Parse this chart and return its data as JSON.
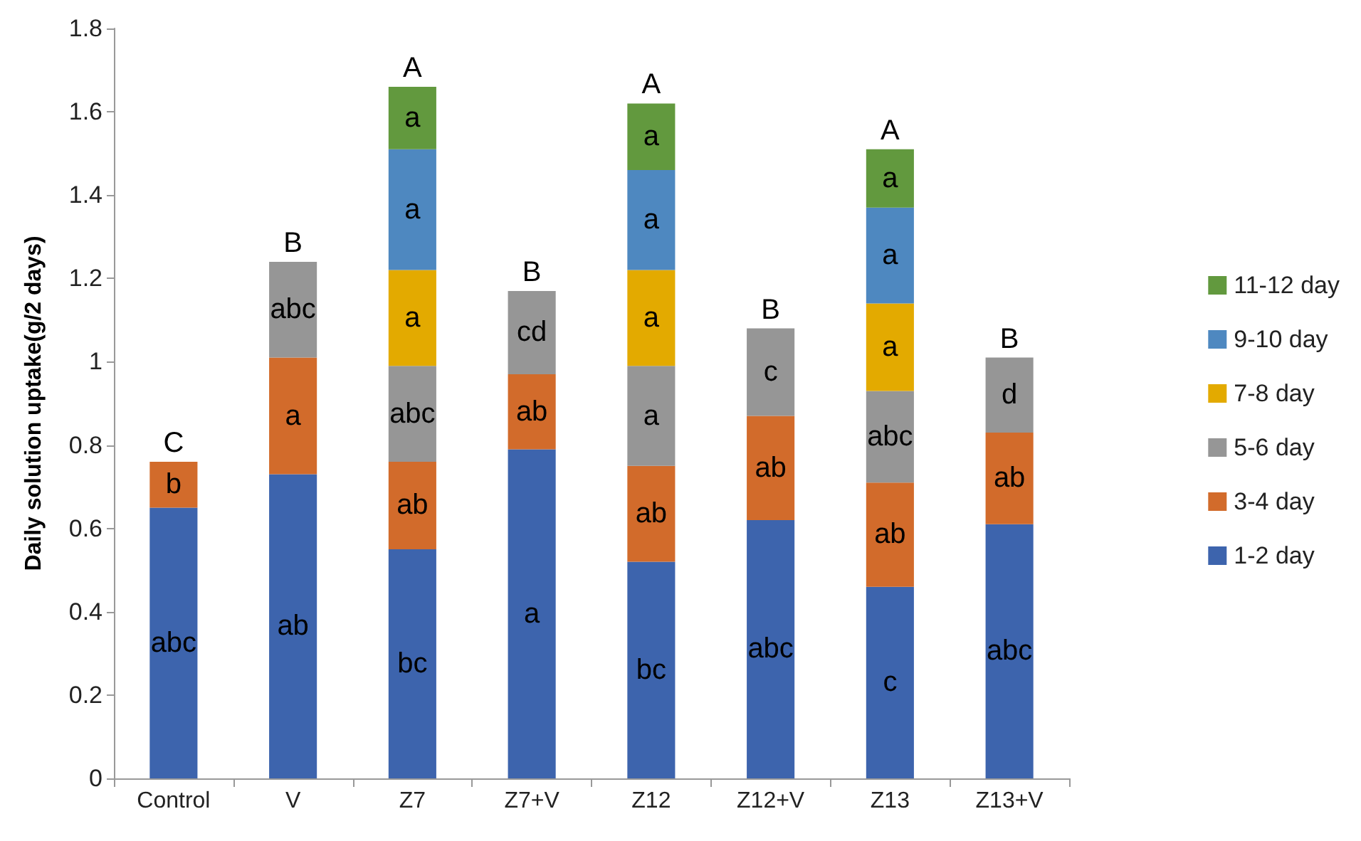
{
  "chart_data": {
    "type": "bar",
    "stacked": true,
    "ylabel": "Daily solution uptake(g/2 days)",
    "categories": [
      "Control",
      "V",
      "Z7",
      "Z7+V",
      "Z12",
      "Z12+V",
      "Z13",
      "Z13+V"
    ],
    "series": [
      {
        "name": "1-2 day",
        "color": "#3d64ad",
        "values": [
          0.65,
          0.73,
          0.55,
          0.79,
          0.52,
          0.62,
          0.46,
          0.61
        ],
        "value_labels": [
          "abc",
          "ab",
          "bc",
          "a",
          "bc",
          "abc",
          "c",
          "abc"
        ]
      },
      {
        "name": "3-4 day",
        "color": "#d26b2b",
        "values": [
          0.11,
          0.28,
          0.21,
          0.18,
          0.23,
          0.25,
          0.25,
          0.22
        ],
        "value_labels": [
          "b",
          "a",
          "ab",
          "ab",
          "ab",
          "ab",
          "ab",
          "ab"
        ]
      },
      {
        "name": "5-6 day",
        "color": "#969696",
        "values": [
          null,
          0.23,
          0.23,
          0.2,
          0.24,
          0.21,
          0.22,
          0.18
        ],
        "value_labels": [
          null,
          "abc",
          "abc",
          "cd",
          "a",
          "c",
          "abc",
          "d"
        ]
      },
      {
        "name": "7-8 day",
        "color": "#e3aa00",
        "values": [
          null,
          null,
          0.23,
          null,
          0.23,
          null,
          0.21,
          null
        ],
        "value_labels": [
          null,
          null,
          "a",
          null,
          "a",
          null,
          "a",
          null
        ]
      },
      {
        "name": "9-10 day",
        "color": "#4e88c0",
        "values": [
          null,
          null,
          0.29,
          null,
          0.24,
          null,
          0.23,
          null
        ],
        "value_labels": [
          null,
          null,
          "a",
          null,
          "a",
          null,
          "a",
          null
        ]
      },
      {
        "name": "11-12 day",
        "color": "#62993e",
        "values": [
          null,
          null,
          0.15,
          null,
          0.16,
          null,
          0.14,
          null
        ],
        "value_labels": [
          null,
          null,
          "a",
          null,
          "a",
          null,
          "a",
          null
        ]
      }
    ],
    "totals": [
      "C",
      "B",
      "A",
      "B",
      "A",
      "B",
      "A",
      "B"
    ],
    "ylim": [
      0,
      1.8
    ],
    "yticks": [
      0,
      0.2,
      0.4,
      0.6,
      0.8,
      1,
      1.2,
      1.4,
      1.6,
      1.8
    ],
    "grid": false,
    "legend": "right"
  }
}
